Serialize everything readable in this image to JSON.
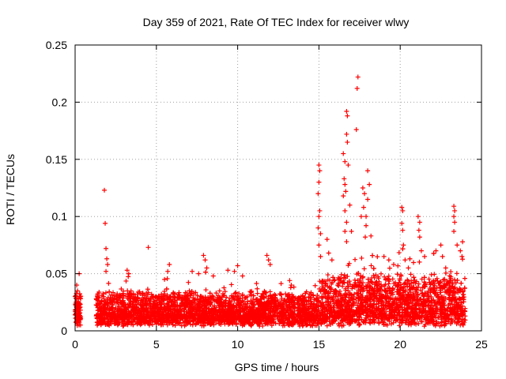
{
  "chart_data": {
    "type": "scatter",
    "title": "Day 359 of 2021, Rate Of TEC Index for receiver wlwy",
    "xlabel": "GPS time / hours",
    "ylabel": "ROTI / TECUs",
    "xlim": [
      0,
      25
    ],
    "ylim": [
      0,
      0.25
    ],
    "xticks": [
      0,
      5,
      10,
      15,
      20,
      25
    ],
    "yticks": [
      0,
      0.05,
      0.1,
      0.15,
      0.2,
      0.25
    ],
    "ytick_labels": [
      "0",
      "0.05",
      "0.1",
      "0.15",
      "0.2",
      "0.25"
    ],
    "grid": true,
    "marker": "+",
    "color": "#ff0000",
    "series": [
      {
        "values": [
          [
            0.0,
            0.03
          ],
          [
            0.05,
            0.025
          ],
          [
            0.1,
            0.04
          ],
          [
            0.15,
            0.02
          ],
          [
            0.2,
            0.012
          ],
          [
            0.25,
            0.05
          ],
          [
            0.1,
            0.018
          ],
          [
            0.2,
            0.028
          ],
          [
            0.05,
            0.015
          ],
          [
            0.15,
            0.035
          ],
          [
            1.8,
            0.123
          ],
          [
            1.85,
            0.094
          ],
          [
            1.9,
            0.072
          ],
          [
            1.95,
            0.063
          ],
          [
            2.0,
            0.058
          ],
          [
            1.9,
            0.052
          ],
          [
            3.2,
            0.053
          ],
          [
            3.3,
            0.05
          ],
          [
            4.5,
            0.073
          ],
          [
            5.8,
            0.058
          ],
          [
            5.7,
            0.052
          ],
          [
            5.5,
            0.045
          ],
          [
            7.2,
            0.052
          ],
          [
            7.6,
            0.05
          ],
          [
            7.9,
            0.066
          ],
          [
            8.0,
            0.062
          ],
          [
            8.1,
            0.055
          ],
          [
            8.5,
            0.048
          ],
          [
            9.4,
            0.053
          ],
          [
            9.8,
            0.052
          ],
          [
            10.0,
            0.057
          ],
          [
            10.3,
            0.048
          ],
          [
            11.8,
            0.066
          ],
          [
            11.9,
            0.062
          ],
          [
            12.0,
            0.058
          ],
          [
            13.2,
            0.044
          ],
          [
            13.3,
            0.04
          ],
          [
            15.0,
            0.145
          ],
          [
            15.05,
            0.14
          ],
          [
            15.0,
            0.13
          ],
          [
            14.95,
            0.12
          ],
          [
            15.05,
            0.105
          ],
          [
            15.0,
            0.1
          ],
          [
            14.95,
            0.09
          ],
          [
            15.1,
            0.085
          ],
          [
            15.0,
            0.075
          ],
          [
            15.1,
            0.065
          ],
          [
            15.5,
            0.08
          ],
          [
            15.6,
            0.068
          ],
          [
            15.8,
            0.062
          ],
          [
            16.5,
            0.155
          ],
          [
            16.6,
            0.148
          ],
          [
            16.55,
            0.133
          ],
          [
            16.6,
            0.128
          ],
          [
            16.65,
            0.122
          ],
          [
            16.5,
            0.118
          ],
          [
            16.6,
            0.105
          ],
          [
            16.7,
            0.095
          ],
          [
            16.6,
            0.087
          ],
          [
            16.7,
            0.078
          ],
          [
            16.7,
            0.192
          ],
          [
            16.75,
            0.188
          ],
          [
            16.7,
            0.172
          ],
          [
            16.75,
            0.165
          ],
          [
            16.8,
            0.145
          ],
          [
            16.9,
            0.11
          ],
          [
            17.0,
            0.087
          ],
          [
            17.4,
            0.222
          ],
          [
            17.35,
            0.212
          ],
          [
            17.3,
            0.176
          ],
          [
            17.6,
            0.1
          ],
          [
            17.7,
            0.125
          ],
          [
            17.8,
            0.12
          ],
          [
            17.75,
            0.108
          ],
          [
            17.9,
            0.092
          ],
          [
            17.85,
            0.082
          ],
          [
            18.0,
            0.14
          ],
          [
            18.1,
            0.128
          ],
          [
            18.0,
            0.115
          ],
          [
            17.9,
            0.1
          ],
          [
            18.2,
            0.083
          ],
          [
            19.0,
            0.065
          ],
          [
            19.3,
            0.062
          ],
          [
            19.6,
            0.058
          ],
          [
            20.1,
            0.108
          ],
          [
            20.15,
            0.105
          ],
          [
            20.1,
            0.094
          ],
          [
            20.15,
            0.088
          ],
          [
            20.2,
            0.075
          ],
          [
            20.3,
            0.062
          ],
          [
            20.5,
            0.055
          ],
          [
            21.1,
            0.1
          ],
          [
            21.2,
            0.095
          ],
          [
            21.15,
            0.088
          ],
          [
            21.2,
            0.082
          ],
          [
            21.3,
            0.07
          ],
          [
            21.5,
            0.065
          ],
          [
            22.2,
            0.07
          ],
          [
            22.5,
            0.075
          ],
          [
            22.6,
            0.065
          ],
          [
            22.8,
            0.055
          ],
          [
            23.3,
            0.109
          ],
          [
            23.35,
            0.105
          ],
          [
            23.3,
            0.1
          ],
          [
            23.35,
            0.095
          ],
          [
            23.3,
            0.087
          ],
          [
            23.5,
            0.075
          ],
          [
            23.7,
            0.07
          ],
          [
            23.8,
            0.065
          ]
        ]
      }
    ]
  }
}
